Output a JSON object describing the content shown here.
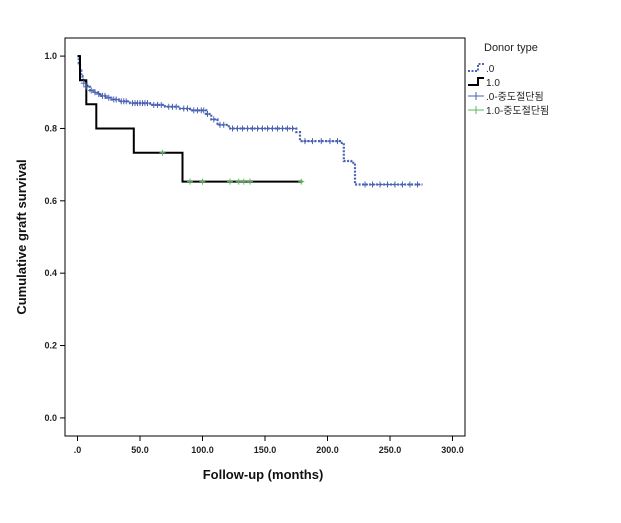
{
  "chart_data": {
    "type": "line",
    "subtype": "kaplan-meier step",
    "title": "",
    "xlabel": "Follow-up (months)",
    "ylabel": "Cumulative graft survival",
    "xlim": [
      -10,
      310
    ],
    "ylim": [
      -0.05,
      1.05
    ],
    "x_ticks": [
      0,
      50,
      100,
      150,
      200,
      250,
      300
    ],
    "x_tick_labels": [
      ".0",
      "50.0",
      "100.0",
      "150.0",
      "200.0",
      "250.0",
      "300.0"
    ],
    "y_ticks": [
      0,
      0.2,
      0.4,
      0.6,
      0.8,
      1.0
    ],
    "y_tick_labels": [
      "0.0",
      "0.2",
      "0.4",
      "0.6",
      "0.8",
      "1.0"
    ],
    "grid": false,
    "legend": {
      "title": "Donor type",
      "position": "outside-right",
      "entries": [
        {
          "label": ".0",
          "series": 0,
          "kind": "line"
        },
        {
          "label": "1.0",
          "series": 1,
          "kind": "line"
        },
        {
          "label": ".0-중도절단됨",
          "series": 0,
          "kind": "censor"
        },
        {
          "label": "1.0-중도절단됨",
          "series": 1,
          "kind": "censor"
        }
      ]
    },
    "series": [
      {
        "color": "#4a63b4",
        "line_style": "dotted",
        "steps": [
          [
            0,
            1.0
          ],
          [
            1,
            0.98
          ],
          [
            2,
            0.96
          ],
          [
            3,
            0.945
          ],
          [
            4,
            0.935
          ],
          [
            6,
            0.925
          ],
          [
            8,
            0.915
          ],
          [
            10,
            0.905
          ],
          [
            13,
            0.9
          ],
          [
            16,
            0.895
          ],
          [
            19,
            0.89
          ],
          [
            23,
            0.885
          ],
          [
            27,
            0.88
          ],
          [
            33,
            0.875
          ],
          [
            42,
            0.87
          ],
          [
            58,
            0.865
          ],
          [
            70,
            0.86
          ],
          [
            82,
            0.855
          ],
          [
            90,
            0.85
          ],
          [
            103,
            0.84
          ],
          [
            107,
            0.825
          ],
          [
            112,
            0.81
          ],
          [
            121,
            0.8
          ],
          [
            175,
            0.79
          ],
          [
            178,
            0.765
          ],
          [
            210,
            0.76
          ],
          [
            213,
            0.71
          ],
          [
            219,
            0.705
          ],
          [
            222,
            0.645
          ]
        ],
        "end_x": 276,
        "censored": [
          [
            5,
            0.925
          ],
          [
            7,
            0.915
          ],
          [
            11,
            0.905
          ],
          [
            14,
            0.9
          ],
          [
            17,
            0.895
          ],
          [
            20,
            0.89
          ],
          [
            22,
            0.89
          ],
          [
            25,
            0.885
          ],
          [
            29,
            0.88
          ],
          [
            31,
            0.88
          ],
          [
            35,
            0.875
          ],
          [
            37,
            0.875
          ],
          [
            39,
            0.875
          ],
          [
            44,
            0.87
          ],
          [
            46,
            0.87
          ],
          [
            48,
            0.87
          ],
          [
            50,
            0.87
          ],
          [
            52,
            0.87
          ],
          [
            54,
            0.87
          ],
          [
            56,
            0.87
          ],
          [
            61,
            0.865
          ],
          [
            64,
            0.865
          ],
          [
            67,
            0.865
          ],
          [
            73,
            0.86
          ],
          [
            76,
            0.86
          ],
          [
            79,
            0.86
          ],
          [
            85,
            0.855
          ],
          [
            88,
            0.855
          ],
          [
            93,
            0.85
          ],
          [
            96,
            0.85
          ],
          [
            99,
            0.85
          ],
          [
            101,
            0.85
          ],
          [
            104,
            0.84
          ],
          [
            109,
            0.825
          ],
          [
            114,
            0.81
          ],
          [
            117,
            0.81
          ],
          [
            124,
            0.8
          ],
          [
            128,
            0.8
          ],
          [
            132,
            0.8
          ],
          [
            136,
            0.8
          ],
          [
            140,
            0.8
          ],
          [
            144,
            0.8
          ],
          [
            148,
            0.8
          ],
          [
            152,
            0.8
          ],
          [
            156,
            0.8
          ],
          [
            160,
            0.8
          ],
          [
            164,
            0.8
          ],
          [
            168,
            0.8
          ],
          [
            172,
            0.8
          ],
          [
            182,
            0.765
          ],
          [
            188,
            0.765
          ],
          [
            195,
            0.765
          ],
          [
            202,
            0.765
          ],
          [
            208,
            0.765
          ],
          [
            230,
            0.645
          ],
          [
            236,
            0.645
          ],
          [
            242,
            0.645
          ],
          [
            248,
            0.645
          ],
          [
            254,
            0.645
          ],
          [
            260,
            0.645
          ],
          [
            266,
            0.645
          ],
          [
            272,
            0.645
          ]
        ]
      },
      {
        "color": "#000000",
        "line_style": "solid",
        "steps": [
          [
            0,
            1.0
          ],
          [
            2,
            0.933
          ],
          [
            7,
            0.867
          ],
          [
            15,
            0.8
          ],
          [
            45,
            0.733
          ],
          [
            84,
            0.653
          ]
        ],
        "end_x": 180,
        "censored": [
          [
            68,
            0.733
          ],
          [
            90,
            0.653
          ],
          [
            100,
            0.653
          ],
          [
            122,
            0.653
          ],
          [
            129,
            0.653
          ],
          [
            133,
            0.653
          ],
          [
            138,
            0.653
          ],
          [
            179,
            0.653
          ]
        ],
        "censor_color": "#5cb85c"
      }
    ]
  }
}
